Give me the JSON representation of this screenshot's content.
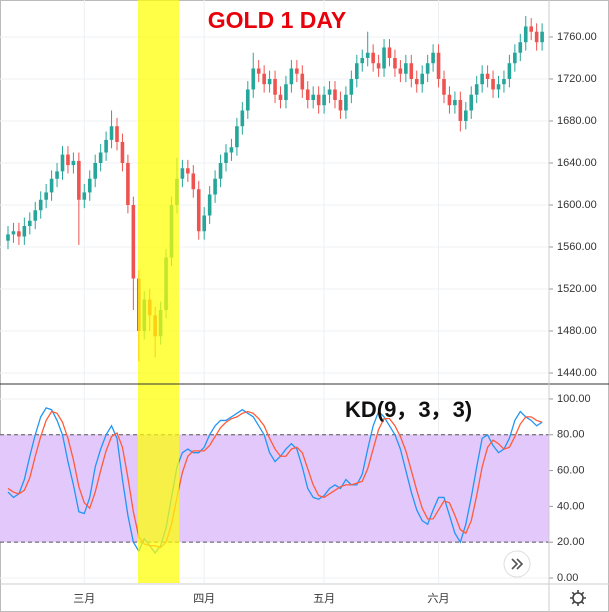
{
  "chart_data": [
    {
      "type": "candlestick",
      "title": "GOLD 1 DAY",
      "title_color": "#e8000b",
      "categories": [
        null,
        null,
        null,
        null,
        null,
        null,
        null,
        null,
        null,
        null,
        null,
        null,
        null,
        null,
        "三月",
        null,
        null,
        null,
        null,
        null,
        null,
        null,
        null,
        null,
        null,
        null,
        null,
        null,
        null,
        null,
        null,
        null,
        null,
        null,
        null,
        null,
        "四月",
        null,
        null,
        null,
        null,
        null,
        null,
        null,
        null,
        null,
        null,
        null,
        null,
        null,
        null,
        null,
        null,
        null,
        null,
        null,
        null,
        null,
        "五月",
        null,
        null,
        null,
        null,
        null,
        null,
        null,
        null,
        null,
        null,
        null,
        null,
        null,
        null,
        null,
        null,
        null,
        null,
        null,
        null,
        "六月",
        null,
        null,
        null,
        null,
        null,
        null,
        null,
        null,
        null,
        null,
        null,
        null,
        null,
        null,
        null,
        null,
        null,
        null,
        null
      ],
      "open": [
        1566,
        1572,
        1575,
        1570,
        1580,
        1585,
        1595,
        1605,
        1612,
        1625,
        1632,
        1648,
        1638,
        1642,
        1605,
        1612,
        1625,
        1640,
        1650,
        1662,
        1675,
        1660,
        1640,
        1600,
        1530,
        1480,
        1510,
        1495,
        1475,
        1500,
        1550,
        1600,
        1625,
        1635,
        1630,
        1615,
        1575,
        1590,
        1610,
        1625,
        1640,
        1650,
        1655,
        1675,
        1690,
        1710,
        1730,
        1725,
        1715,
        1720,
        1705,
        1700,
        1715,
        1730,
        1725,
        1710,
        1700,
        1705,
        1695,
        1705,
        1710,
        1700,
        1690,
        1705,
        1720,
        1735,
        1740,
        1745,
        1735,
        1730,
        1750,
        1740,
        1730,
        1725,
        1735,
        1720,
        1715,
        1725,
        1735,
        1745,
        1720,
        1705,
        1695,
        1700,
        1680,
        1690,
        1705,
        1715,
        1725,
        1720,
        1710,
        1715,
        1720,
        1735,
        1745,
        1755,
        1770,
        1765,
        1755
      ],
      "high": [
        1580,
        1583,
        1583,
        1588,
        1593,
        1603,
        1613,
        1620,
        1633,
        1640,
        1656,
        1656,
        1650,
        1650,
        1620,
        1633,
        1648,
        1658,
        1670,
        1690,
        1683,
        1668,
        1648,
        1608,
        1538,
        1518,
        1520,
        1503,
        1508,
        1558,
        1608,
        1645,
        1643,
        1643,
        1638,
        1623,
        1598,
        1618,
        1633,
        1648,
        1658,
        1663,
        1683,
        1698,
        1718,
        1745,
        1738,
        1733,
        1728,
        1728,
        1713,
        1723,
        1738,
        1738,
        1733,
        1718,
        1713,
        1713,
        1713,
        1718,
        1718,
        1708,
        1713,
        1728,
        1743,
        1748,
        1765,
        1753,
        1743,
        1758,
        1758,
        1748,
        1738,
        1743,
        1743,
        1728,
        1733,
        1743,
        1753,
        1753,
        1728,
        1713,
        1708,
        1708,
        1698,
        1713,
        1723,
        1733,
        1733,
        1728,
        1723,
        1728,
        1743,
        1753,
        1763,
        1780,
        1778,
        1773,
        1773
      ],
      "low": [
        1558,
        1564,
        1562,
        1562,
        1572,
        1577,
        1587,
        1597,
        1604,
        1617,
        1624,
        1630,
        1630,
        1562,
        1597,
        1604,
        1617,
        1632,
        1642,
        1654,
        1652,
        1632,
        1592,
        1500,
        1451,
        1472,
        1480,
        1455,
        1467,
        1492,
        1542,
        1592,
        1617,
        1622,
        1607,
        1567,
        1567,
        1582,
        1602,
        1617,
        1632,
        1642,
        1647,
        1667,
        1682,
        1702,
        1717,
        1707,
        1707,
        1697,
        1692,
        1692,
        1707,
        1717,
        1702,
        1692,
        1692,
        1687,
        1687,
        1697,
        1692,
        1682,
        1682,
        1697,
        1712,
        1727,
        1732,
        1727,
        1722,
        1722,
        1732,
        1722,
        1717,
        1717,
        1712,
        1707,
        1707,
        1717,
        1727,
        1712,
        1697,
        1687,
        1687,
        1670,
        1672,
        1682,
        1697,
        1707,
        1712,
        1702,
        1702,
        1707,
        1712,
        1727,
        1737,
        1747,
        1757,
        1747,
        1747
      ],
      "close": [
        1572,
        1575,
        1570,
        1580,
        1585,
        1595,
        1605,
        1612,
        1625,
        1632,
        1648,
        1638,
        1642,
        1605,
        1612,
        1625,
        1640,
        1650,
        1662,
        1675,
        1660,
        1640,
        1600,
        1530,
        1480,
        1510,
        1495,
        1475,
        1500,
        1550,
        1600,
        1625,
        1635,
        1630,
        1615,
        1575,
        1590,
        1610,
        1625,
        1640,
        1650,
        1655,
        1675,
        1690,
        1710,
        1730,
        1725,
        1715,
        1720,
        1705,
        1700,
        1715,
        1730,
        1725,
        1710,
        1700,
        1705,
        1695,
        1705,
        1710,
        1700,
        1690,
        1705,
        1720,
        1735,
        1740,
        1745,
        1735,
        1730,
        1750,
        1740,
        1730,
        1725,
        1735,
        1720,
        1715,
        1725,
        1735,
        1745,
        1720,
        1705,
        1695,
        1700,
        1680,
        1690,
        1705,
        1715,
        1725,
        1720,
        1710,
        1715,
        1720,
        1735,
        1745,
        1755,
        1770,
        1765,
        1755,
        1765
      ],
      "up_color": "#26a69a",
      "down_color": "#ef5350",
      "ylim": [
        1430.5,
        1795.2
      ],
      "yticks": [
        {
          "value": 1440,
          "label": "1440.00"
        },
        {
          "value": 1480,
          "label": "1480.00"
        },
        {
          "value": 1520,
          "label": "1520.00"
        },
        {
          "value": 1560,
          "label": "1560.00"
        },
        {
          "value": 1600,
          "label": "1600.00"
        },
        {
          "value": 1640,
          "label": "1640.00"
        },
        {
          "value": 1680,
          "label": "1680.00"
        },
        {
          "value": 1720,
          "label": "1720.00"
        },
        {
          "value": 1760,
          "label": "1760.00"
        }
      ],
      "grid": true
    },
    {
      "type": "line",
      "title": "KD(9，3，3)",
      "series": [
        {
          "color": "#2196f3",
          "values": [
            48,
            45,
            47,
            55,
            68,
            80,
            90,
            95,
            94,
            88,
            80,
            65,
            52,
            37,
            36,
            45,
            62,
            72,
            80,
            85,
            78,
            55,
            35,
            20,
            15,
            22,
            18,
            14,
            18,
            28,
            45,
            62,
            70,
            72,
            70,
            70,
            73,
            80,
            85,
            88,
            88,
            90,
            92,
            94,
            92,
            90,
            85,
            80,
            70,
            65,
            68,
            72,
            75,
            72,
            62,
            50,
            45,
            44,
            46,
            50,
            52,
            50,
            55,
            52,
            52,
            58,
            72,
            85,
            93,
            90,
            85,
            80,
            72,
            60,
            48,
            38,
            32,
            30,
            38,
            45,
            45,
            35,
            25,
            20,
            30,
            45,
            62,
            78,
            80,
            74,
            70,
            72,
            78,
            88,
            93,
            90,
            88,
            85,
            87
          ]
        },
        {
          "color": "#ff5b3a",
          "values": [
            50,
            48,
            47,
            49,
            56,
            68,
            79,
            88,
            93,
            92,
            87,
            78,
            66,
            51,
            42,
            39,
            48,
            60,
            71,
            79,
            81,
            73,
            56,
            37,
            23,
            19,
            18,
            18,
            17,
            20,
            30,
            45,
            59,
            68,
            71,
            71,
            71,
            74,
            79,
            84,
            87,
            89,
            90,
            92,
            93,
            92,
            89,
            85,
            78,
            72,
            68,
            68,
            72,
            73,
            70,
            61,
            52,
            46,
            45,
            47,
            49,
            51,
            52,
            52,
            53,
            54,
            61,
            72,
            83,
            89,
            89,
            85,
            79,
            71,
            60,
            49,
            39,
            33,
            33,
            38,
            43,
            42,
            35,
            27,
            25,
            32,
            46,
            62,
            73,
            77,
            75,
            72,
            73,
            79,
            86,
            90,
            90,
            88,
            87
          ]
        }
      ],
      "bands": [
        20,
        80
      ],
      "band_color": "#e3c8fb",
      "ylim": [
        -2.8,
        107.8
      ],
      "yticks": [
        {
          "value": 0,
          "label": "0.00"
        },
        {
          "value": 20,
          "label": "20.00"
        },
        {
          "value": 40,
          "label": "40.00"
        },
        {
          "value": 60,
          "label": "60.00"
        },
        {
          "value": 80,
          "label": "80.00"
        },
        {
          "value": 100,
          "label": "100.00"
        }
      ],
      "grid": true
    }
  ]
}
